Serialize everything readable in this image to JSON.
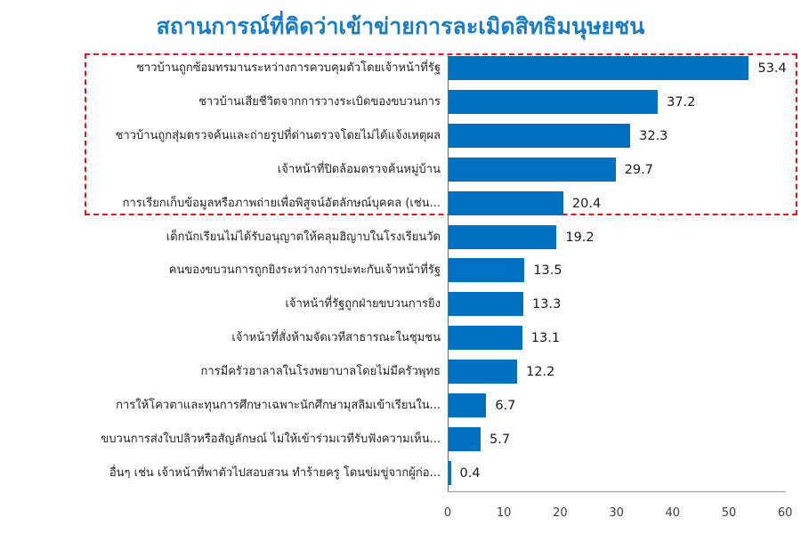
{
  "chart_data": {
    "type": "bar",
    "orientation": "horizontal",
    "title": "สถานการณ์ที่คิดว่าเข้าข่ายการละเมิดสิทธิมนุษยชน",
    "xlabel": "",
    "ylabel": "",
    "xlim": [
      0,
      60
    ],
    "xticks": [
      0,
      10,
      20,
      30,
      40,
      50,
      60
    ],
    "grid": false,
    "legend": null,
    "bar_color": "#0070c0",
    "highlight": {
      "color": "#e8141b",
      "style": "dashed",
      "rows": [
        0,
        1,
        2,
        3,
        4
      ]
    },
    "categories": [
      "ชาวบ้านถูกซ้อมทรมานระหว่างการควบคุมตัวโดยเจ้าหน้าที่รัฐ",
      "ชาวบ้านเสียชีวิตจากการวางระเบิดของขบวนการ",
      "ชาวบ้านถูกสุ่มตรวจค้นและถ่ายรูปที่ด่านตรวจโดยไม่ได้แจ้งเหตุผล",
      "เจ้าหน้าที่ปิดล้อมตรวจค้นหมู่บ้าน",
      "การเรียกเก็บข้อมูลหรือภาพถ่ายเพื่อพิสูจน์อัตลักษณ์บุคคล (เช่น...",
      "เด็กนักเรียนไม่ได้รับอนุญาตให้คลุมฮิญาบในโรงเรียนวัด",
      "คนของขบวนการถูกยิงระหว่างการปะทะกับเจ้าหน้าที่รัฐ",
      "เจ้าหน้าที่รัฐถูกฝ่ายขบวนการยิง",
      "เจ้าหน้าที่สั่งห้ามจัดเวทีสาธารณะในชุมชน",
      "การมีครัวฮาลาลในโรงพยาบาลโดยไม่มีครัวพุทธ",
      "การให้โควตาและทุนการศึกษาเฉพาะนักศึกษามุสลิมเข้าเรียนใน...",
      "ขบวนการส่งใบปลิวหรือสัญลักษณ์ ไม่ให้เข้าร่วมเวทีรับฟังความเห็น...",
      "อื่นๆ เช่น เจ้าหน้าที่พาตัวไปสอบสวน ทำร้ายครู โดนข่มขู่จากผู้ก่อ..."
    ],
    "values": [
      53.4,
      37.2,
      32.3,
      29.7,
      20.4,
      19.2,
      13.5,
      13.3,
      13.1,
      12.2,
      6.7,
      5.7,
      0.4
    ],
    "value_labels": [
      "53.4",
      "37.2",
      "32.3",
      "29.7",
      "20.4",
      "19.2",
      "13.5",
      "13.3",
      "13.1",
      "12.2",
      "6.7",
      "5.7",
      "0.4"
    ]
  }
}
